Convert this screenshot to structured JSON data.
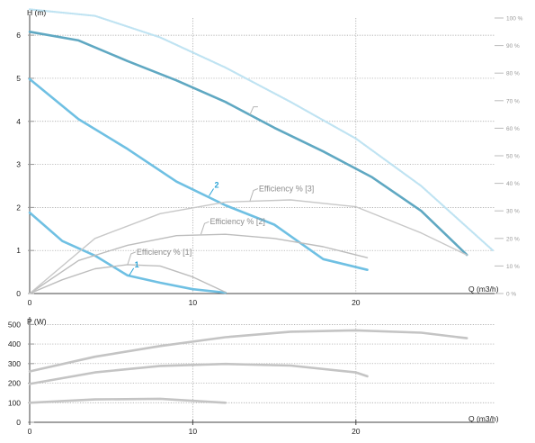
{
  "chart_data": [
    {
      "type": "line",
      "xlabel": "Q (m3/h)",
      "ylabel": "H (m)",
      "y2label": "",
      "xlim": [
        0,
        28.5
      ],
      "ylim": [
        0,
        6.4
      ],
      "y2lim": [
        0,
        100
      ],
      "x_ticks": [
        "0",
        "10",
        "20"
      ],
      "y_ticks": [
        "0",
        "1",
        "2",
        "3",
        "4",
        "5",
        "6"
      ],
      "y2_ticks": [
        "0 %",
        "10 %",
        "20 %",
        "30 %",
        "40 %",
        "50 %",
        "60 %",
        "70 %",
        "80 %",
        "90 %",
        "100 %"
      ],
      "grid": true,
      "series": [
        {
          "name": "1",
          "kind": "head",
          "color": "#6fc0e3",
          "points": [
            [
              0,
              1.88
            ],
            [
              2,
              1.22
            ],
            [
              4,
              0.88
            ],
            [
              6,
              0.42
            ],
            [
              8,
              0.25
            ],
            [
              10,
              0.1
            ],
            [
              12,
              0.02
            ]
          ]
        },
        {
          "name": "2",
          "kind": "head",
          "color": "#6fc0e3",
          "points": [
            [
              0,
              4.98
            ],
            [
              3,
              4.05
            ],
            [
              6,
              3.36
            ],
            [
              9,
              2.6
            ],
            [
              12,
              2.05
            ],
            [
              15,
              1.6
            ],
            [
              18,
              0.8
            ],
            [
              20.7,
              0.55
            ]
          ]
        },
        {
          "name": "",
          "kind": "head",
          "color": "#5fa8c2",
          "points": [
            [
              0,
              6.08
            ],
            [
              3,
              5.88
            ],
            [
              6,
              5.4
            ],
            [
              9,
              4.95
            ],
            [
              12,
              4.45
            ],
            [
              15,
              3.85
            ],
            [
              18,
              3.3
            ],
            [
              21,
              2.7
            ],
            [
              24,
              1.92
            ],
            [
              26.8,
              0.9
            ]
          ]
        },
        {
          "name": "",
          "kind": "head",
          "color": "#bfe3f2",
          "dotted": true,
          "points": [
            [
              0,
              6.6
            ],
            [
              4,
              6.45
            ],
            [
              8,
              5.95
            ],
            [
              12,
              5.25
            ],
            [
              16,
              4.45
            ],
            [
              20,
              3.6
            ],
            [
              24,
              2.5
            ],
            [
              28.4,
              1.0
            ]
          ]
        },
        {
          "name": "Efficiency % [1]",
          "kind": "efficiency",
          "color": "#bdbdbd",
          "points": [
            [
              0,
              0
            ],
            [
              2,
              5
            ],
            [
              4,
              9
            ],
            [
              6,
              10.5
            ],
            [
              8,
              10
            ],
            [
              10,
              6
            ],
            [
              12,
              0.5
            ]
          ]
        },
        {
          "name": "Efficiency % [2]",
          "kind": "efficiency",
          "color": "#bdbdbd",
          "points": [
            [
              0,
              0
            ],
            [
              3,
              12
            ],
            [
              6,
              17.5
            ],
            [
              9,
              21
            ],
            [
              12,
              21.5
            ],
            [
              15,
              20
            ],
            [
              18,
              17
            ],
            [
              20.7,
              13
            ]
          ]
        },
        {
          "name": "Efficiency % [3]",
          "kind": "efficiency",
          "color": "#c8c8c8",
          "points": [
            [
              0,
              0
            ],
            [
              4,
              20
            ],
            [
              8,
              29
            ],
            [
              12,
              33.2
            ],
            [
              16,
              34
            ],
            [
              20,
              31.5
            ],
            [
              24,
              22
            ],
            [
              26.8,
              14
            ]
          ]
        }
      ],
      "labels": [
        {
          "text": "1",
          "x": 6.1,
          "y": 0.42
        },
        {
          "text": "2",
          "x": 11.0,
          "y": 2.27
        }
      ],
      "efficiency_labels": [
        {
          "text": "Efficiency % [1]",
          "x": 6.0,
          "eff": 10.5
        },
        {
          "text": "Efficiency % [2]",
          "x": 10.5,
          "eff": 21.5
        },
        {
          "text": "Efficiency % [3]",
          "x": 13.5,
          "eff": 33.5
        }
      ]
    },
    {
      "type": "line",
      "xlabel": "Q (m3/h)",
      "ylabel": "P (W)",
      "xlim": [
        0,
        28.5
      ],
      "ylim": [
        0,
        520
      ],
      "x_ticks": [
        "0",
        "10",
        "20"
      ],
      "y_ticks": [
        "0",
        "100",
        "200",
        "300",
        "400",
        "500"
      ],
      "grid": true,
      "series": [
        {
          "name": "",
          "color": "#c4c4c4",
          "points": [
            [
              0,
              100
            ],
            [
              4,
              117
            ],
            [
              8,
              120
            ],
            [
              12,
              100
            ]
          ]
        },
        {
          "name": "",
          "color": "#c4c4c4",
          "points": [
            [
              0,
              196
            ],
            [
              4,
              255
            ],
            [
              8,
              288
            ],
            [
              12,
              298
            ],
            [
              16,
              290
            ],
            [
              20,
              255
            ],
            [
              20.7,
              235
            ]
          ]
        },
        {
          "name": "",
          "color": "#c4c4c4",
          "points": [
            [
              0,
              260
            ],
            [
              4,
              335
            ],
            [
              8,
              390
            ],
            [
              12,
              435
            ],
            [
              16,
              463
            ],
            [
              20,
              470
            ],
            [
              24,
              458
            ],
            [
              26.8,
              430
            ]
          ]
        }
      ]
    }
  ]
}
